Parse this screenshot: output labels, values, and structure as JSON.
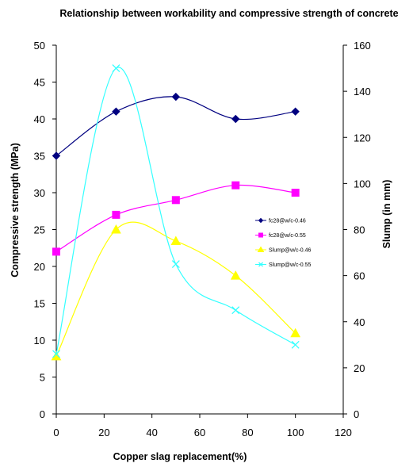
{
  "chart_data": {
    "type": "line",
    "title": "Relationship between workability and compressive strength of concrete",
    "xlabel": "Copper slag replacement(%)",
    "ylabel": "Compressive strength (MPa)",
    "y2label": "Slump (in mm)",
    "xlim": [
      0,
      120
    ],
    "ylim": [
      0,
      50
    ],
    "y2lim": [
      0,
      160
    ],
    "x_ticks": [
      "0",
      "20",
      "40",
      "60",
      "80",
      "100",
      "120"
    ],
    "y_ticks": [
      "0",
      "5",
      "10",
      "15",
      "20",
      "25",
      "30",
      "35",
      "40",
      "45",
      "50"
    ],
    "y2_ticks": [
      "0",
      "20",
      "40",
      "60",
      "80",
      "100",
      "120",
      "140",
      "160"
    ],
    "grid": false,
    "legend_position": "right",
    "series": [
      {
        "name": "fc28@w/c-0.46",
        "axis": "left",
        "marker": "diamond",
        "color": "#000080",
        "x": [
          0,
          25,
          50,
          75,
          100
        ],
        "y": [
          35,
          41,
          43,
          40,
          41
        ]
      },
      {
        "name": "fc28@w/c-0.55",
        "axis": "left",
        "marker": "square",
        "color": "#ff00ff",
        "x": [
          0,
          25,
          50,
          75,
          100
        ],
        "y": [
          22,
          27,
          29,
          31,
          30
        ]
      },
      {
        "name": "Slump@w/c-0.46",
        "axis": "right",
        "marker": "triangle",
        "color": "#ffff00",
        "x": [
          0,
          25,
          50,
          75,
          100
        ],
        "y": [
          25,
          80,
          75,
          60,
          35
        ]
      },
      {
        "name": "Slump@w/c-0.55",
        "axis": "right",
        "marker": "x",
        "color": "#33ffff",
        "x": [
          0,
          25,
          50,
          75,
          100
        ],
        "y": [
          26,
          150,
          65,
          45,
          30
        ]
      }
    ]
  }
}
